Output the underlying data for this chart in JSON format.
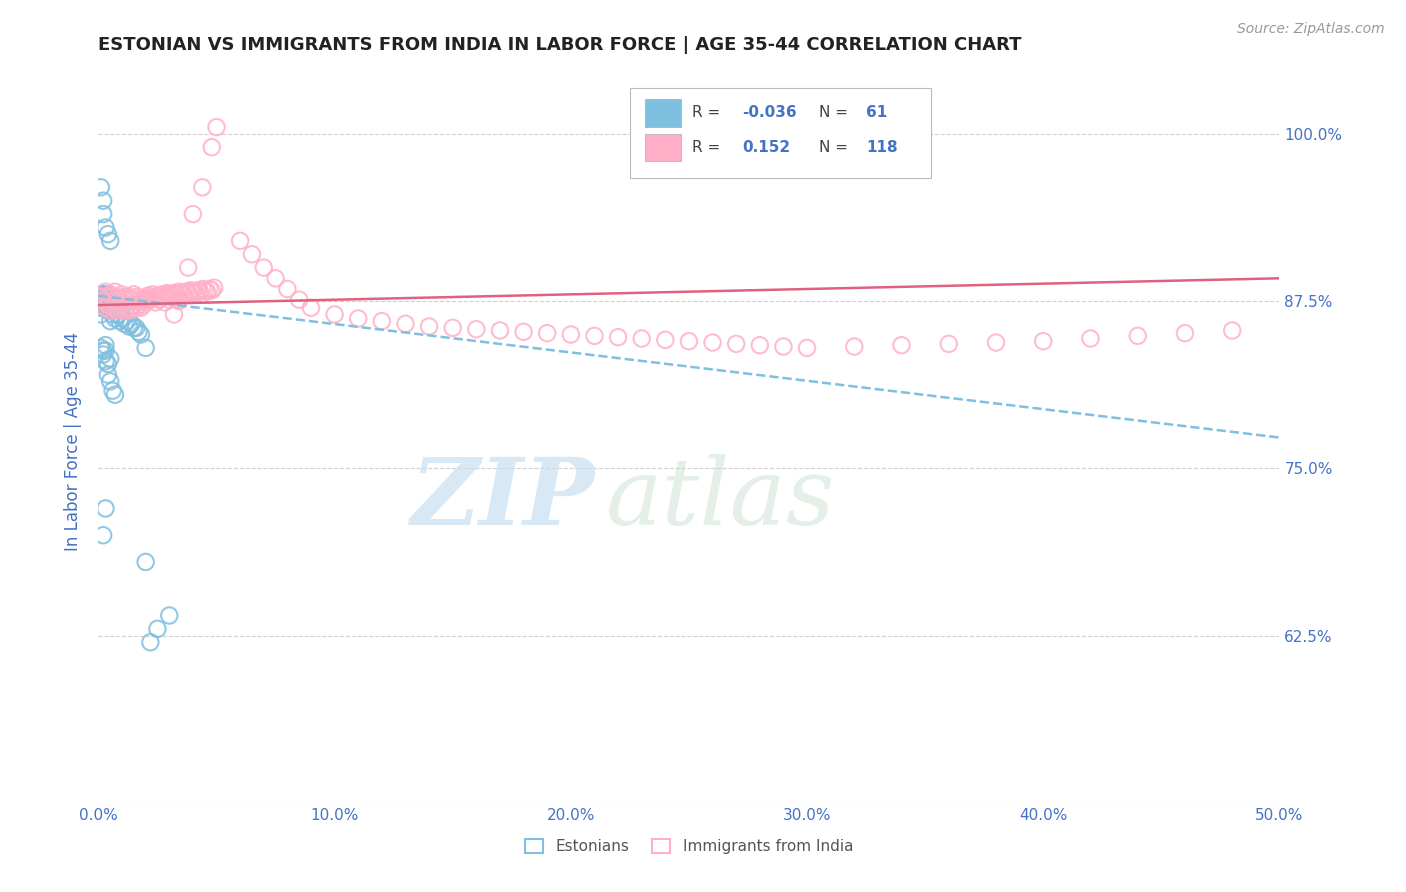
{
  "title": "ESTONIAN VS IMMIGRANTS FROM INDIA IN LABOR FORCE | AGE 35-44 CORRELATION CHART",
  "source": "Source: ZipAtlas.com",
  "ylabel": "In Labor Force | Age 35-44",
  "xlim": [
    0.0,
    0.5
  ],
  "ylim": [
    0.5,
    1.04
  ],
  "yticks": [
    0.625,
    0.75,
    0.875,
    1.0
  ],
  "ytick_labels": [
    "62.5%",
    "75.0%",
    "87.5%",
    "100.0%"
  ],
  "xticks": [
    0.0,
    0.1,
    0.2,
    0.3,
    0.4,
    0.5
  ],
  "xtick_labels": [
    "0.0%",
    "10.0%",
    "20.0%",
    "30.0%",
    "40.0%",
    "50.0%"
  ],
  "blue_color": "#7fbfdf",
  "pink_color": "#ffb0c8",
  "watermark_zip": "ZIP",
  "watermark_atlas": "atlas",
  "background_color": "#ffffff",
  "grid_color": "#d0d0d0",
  "title_color": "#222222",
  "axis_label_color": "#4472c4",
  "tick_color": "#4472c4",
  "blue_R_text": "-0.036",
  "blue_N_text": "61",
  "pink_R_text": "0.152",
  "pink_N_text": "118",
  "blue_scatter_x": [
    0.001,
    0.001,
    0.001,
    0.001,
    0.002,
    0.002,
    0.003,
    0.003,
    0.003,
    0.003,
    0.004,
    0.004,
    0.005,
    0.005,
    0.005,
    0.005,
    0.006,
    0.006,
    0.006,
    0.007,
    0.007,
    0.008,
    0.008,
    0.009,
    0.009,
    0.01,
    0.01,
    0.011,
    0.012,
    0.013,
    0.014,
    0.015,
    0.016,
    0.017,
    0.018,
    0.02,
    0.001,
    0.002,
    0.002,
    0.003,
    0.004,
    0.005,
    0.001,
    0.002,
    0.003,
    0.002,
    0.003,
    0.003,
    0.004,
    0.005,
    0.004,
    0.005,
    0.006,
    0.007,
    0.002,
    0.003,
    0.02,
    0.03,
    0.025,
    0.022
  ],
  "blue_scatter_y": [
    0.875,
    0.88,
    0.87,
    0.865,
    0.88,
    0.875,
    0.88,
    0.878,
    0.872,
    0.87,
    0.875,
    0.868,
    0.876,
    0.872,
    0.868,
    0.86,
    0.875,
    0.87,
    0.865,
    0.873,
    0.862,
    0.872,
    0.865,
    0.868,
    0.86,
    0.87,
    0.862,
    0.858,
    0.86,
    0.856,
    0.858,
    0.855,
    0.855,
    0.852,
    0.85,
    0.84,
    0.96,
    0.95,
    0.94,
    0.93,
    0.925,
    0.92,
    0.84,
    0.838,
    0.842,
    0.835,
    0.838,
    0.83,
    0.828,
    0.832,
    0.82,
    0.815,
    0.808,
    0.805,
    0.7,
    0.72,
    0.68,
    0.64,
    0.63,
    0.62
  ],
  "pink_scatter_x": [
    0.001,
    0.002,
    0.003,
    0.003,
    0.004,
    0.005,
    0.005,
    0.006,
    0.007,
    0.007,
    0.008,
    0.009,
    0.01,
    0.01,
    0.011,
    0.012,
    0.013,
    0.014,
    0.015,
    0.016,
    0.017,
    0.018,
    0.019,
    0.02,
    0.02,
    0.021,
    0.022,
    0.023,
    0.024,
    0.025,
    0.026,
    0.027,
    0.028,
    0.029,
    0.03,
    0.031,
    0.032,
    0.033,
    0.034,
    0.035,
    0.036,
    0.037,
    0.038,
    0.039,
    0.04,
    0.041,
    0.042,
    0.043,
    0.044,
    0.045,
    0.046,
    0.047,
    0.048,
    0.049,
    0.003,
    0.004,
    0.005,
    0.006,
    0.007,
    0.008,
    0.009,
    0.01,
    0.011,
    0.012,
    0.013,
    0.014,
    0.015,
    0.016,
    0.017,
    0.018,
    0.019,
    0.02,
    0.022,
    0.024,
    0.026,
    0.028,
    0.03,
    0.032,
    0.034,
    0.05,
    0.048,
    0.044,
    0.04,
    0.038,
    0.036,
    0.034,
    0.032,
    0.06,
    0.065,
    0.07,
    0.075,
    0.08,
    0.085,
    0.09,
    0.1,
    0.11,
    0.12,
    0.13,
    0.14,
    0.15,
    0.16,
    0.17,
    0.18,
    0.19,
    0.2,
    0.21,
    0.22,
    0.23,
    0.24,
    0.25,
    0.26,
    0.27,
    0.28,
    0.29,
    0.3,
    0.32,
    0.34,
    0.36,
    0.38,
    0.4,
    0.42,
    0.44,
    0.46,
    0.48
  ],
  "pink_scatter_y": [
    0.878,
    0.876,
    0.882,
    0.874,
    0.878,
    0.88,
    0.875,
    0.878,
    0.882,
    0.875,
    0.878,
    0.876,
    0.88,
    0.874,
    0.878,
    0.876,
    0.878,
    0.876,
    0.88,
    0.878,
    0.875,
    0.877,
    0.876,
    0.878,
    0.876,
    0.879,
    0.877,
    0.88,
    0.878,
    0.879,
    0.878,
    0.88,
    0.879,
    0.881,
    0.88,
    0.879,
    0.881,
    0.88,
    0.882,
    0.881,
    0.88,
    0.882,
    0.881,
    0.883,
    0.882,
    0.881,
    0.883,
    0.882,
    0.884,
    0.883,
    0.882,
    0.884,
    0.883,
    0.885,
    0.87,
    0.872,
    0.868,
    0.87,
    0.872,
    0.868,
    0.87,
    0.872,
    0.868,
    0.87,
    0.868,
    0.87,
    0.872,
    0.87,
    0.872,
    0.87,
    0.872,
    0.874,
    0.876,
    0.874,
    0.876,
    0.874,
    0.876,
    0.878,
    0.876,
    1.005,
    0.99,
    0.96,
    0.94,
    0.9,
    0.88,
    0.875,
    0.865,
    0.92,
    0.91,
    0.9,
    0.892,
    0.884,
    0.876,
    0.87,
    0.865,
    0.862,
    0.86,
    0.858,
    0.856,
    0.855,
    0.854,
    0.853,
    0.852,
    0.851,
    0.85,
    0.849,
    0.848,
    0.847,
    0.846,
    0.845,
    0.844,
    0.843,
    0.842,
    0.841,
    0.84,
    0.841,
    0.842,
    0.843,
    0.844,
    0.845,
    0.847,
    0.849,
    0.851,
    0.853
  ]
}
